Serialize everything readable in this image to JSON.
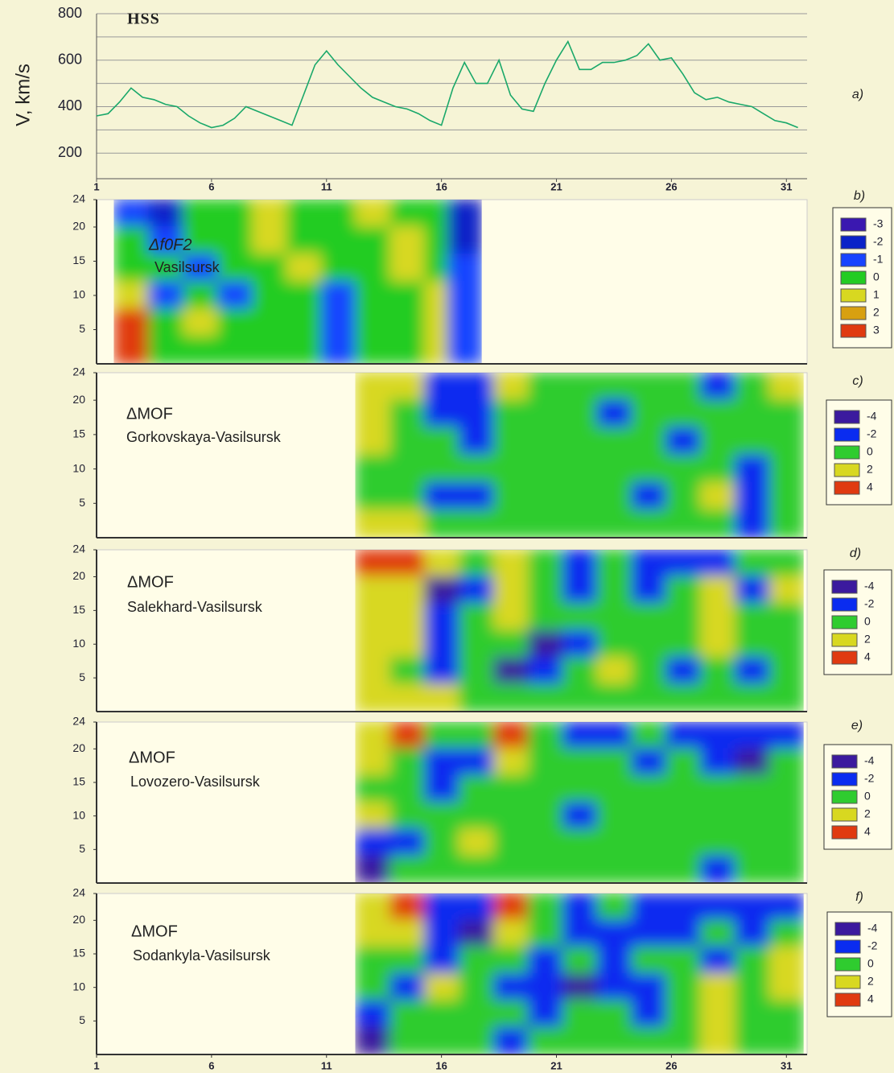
{
  "chart_data": [
    {
      "type": "line",
      "y_label": "V, km/s",
      "annotation": "HSS",
      "panel": "a)",
      "color": "#1aa86a",
      "xlim": [
        1,
        31.9
      ],
      "xticks": [
        1,
        6,
        11,
        16,
        21,
        26,
        31
      ],
      "ylim": [
        90,
        800
      ],
      "yticks": [
        200,
        400,
        600,
        800
      ],
      "minor_yticks": [
        300,
        500,
        700
      ],
      "grid": true,
      "x": [
        1,
        1.5,
        2,
        2.5,
        3,
        3.5,
        4,
        4.5,
        5,
        5.5,
        6,
        6.5,
        7,
        7.5,
        8,
        8.5,
        9,
        9.5,
        10,
        10.5,
        11,
        11.5,
        12,
        12.5,
        13,
        13.5,
        14,
        14.5,
        15,
        15.5,
        16,
        16.5,
        17,
        17.5,
        18,
        18.5,
        19,
        19.5,
        20,
        20.5,
        21,
        21.5,
        22,
        22.5,
        23,
        23.5,
        24,
        24.5,
        25,
        25.5,
        26,
        26.5,
        27,
        27.5,
        28,
        28.5,
        29,
        29.5,
        30,
        30.5,
        31,
        31.5
      ],
      "values": [
        360,
        370,
        420,
        480,
        440,
        430,
        410,
        400,
        360,
        330,
        310,
        320,
        350,
        400,
        380,
        360,
        340,
        320,
        450,
        580,
        640,
        580,
        530,
        480,
        440,
        420,
        400,
        390,
        370,
        340,
        320,
        480,
        590,
        500,
        500,
        600,
        450,
        390,
        380,
        500,
        600,
        680,
        560,
        560,
        590,
        590,
        600,
        620,
        670,
        600,
        610,
        540,
        460,
        430,
        440,
        420,
        410,
        400,
        370,
        340,
        330,
        310
      ]
    },
    {
      "type": "heatmap",
      "title": "Δf0F2",
      "subtitle": "Vasilsursk",
      "panel": "b)",
      "xlim": [
        1,
        31.9
      ],
      "ylim": [
        0,
        24
      ],
      "yticks": [
        5,
        10,
        15,
        20,
        24
      ],
      "x": [
        2.5,
        4,
        5.5,
        7,
        8.5,
        10,
        11.5,
        13,
        14.5,
        16,
        17
      ],
      "y": [
        22,
        18,
        14,
        10,
        6,
        2
      ],
      "z": [
        [
          -1,
          -2,
          0,
          0,
          1,
          0,
          0,
          1,
          0,
          0,
          -2
        ],
        [
          0,
          -1,
          0,
          0,
          1,
          0,
          0,
          0,
          1,
          0,
          -2
        ],
        [
          0,
          0,
          -1,
          0,
          0,
          1,
          0,
          0,
          1,
          0,
          -1
        ],
        [
          1,
          -1,
          0,
          -1,
          0,
          0,
          -1,
          0,
          0,
          1,
          -1
        ],
        [
          3,
          0,
          1,
          0,
          0,
          0,
          -1,
          0,
          0,
          1,
          -1
        ],
        [
          3,
          0,
          0,
          0,
          0,
          0,
          -1,
          0,
          0,
          1,
          -1
        ]
      ],
      "legend": [
        {
          "value": -3,
          "color": "#3a18b0"
        },
        {
          "value": -2,
          "color": "#0a22c8"
        },
        {
          "value": -1,
          "color": "#1844ff"
        },
        {
          "value": 0,
          "color": "#22cc22"
        },
        {
          "value": 1,
          "color": "#d8d820"
        },
        {
          "value": 2,
          "color": "#d8a010"
        },
        {
          "value": 3,
          "color": "#e03a10"
        }
      ]
    },
    {
      "type": "heatmap",
      "title": "ΔMOF",
      "subtitle": "Gorkovskaya-Vasilsursk",
      "panel": "c)",
      "xlim": [
        1,
        31.9
      ],
      "ylim": [
        0,
        24
      ],
      "yticks": [
        5,
        10,
        15,
        20,
        24
      ],
      "x": [
        13,
        14.5,
        16,
        17.5,
        19,
        20.5,
        22,
        23.5,
        25,
        26.5,
        28,
        29.5,
        31
      ],
      "y": [
        22,
        18,
        14,
        10,
        6,
        2
      ],
      "z": [
        [
          2,
          2,
          -2,
          -2,
          2,
          0,
          0,
          0,
          0,
          0,
          -2,
          0,
          2
        ],
        [
          2,
          0,
          -2,
          -2,
          0,
          0,
          0,
          -2,
          0,
          0,
          0,
          0,
          0
        ],
        [
          2,
          0,
          0,
          -2,
          0,
          0,
          0,
          0,
          0,
          -2,
          0,
          0,
          0
        ],
        [
          0,
          0,
          0,
          0,
          0,
          0,
          0,
          0,
          0,
          0,
          0,
          -2,
          0
        ],
        [
          0,
          0,
          -2,
          -2,
          0,
          0,
          0,
          0,
          -2,
          0,
          2,
          -2,
          0
        ],
        [
          2,
          2,
          0,
          0,
          0,
          0,
          0,
          0,
          0,
          0,
          0,
          -2,
          0
        ]
      ],
      "legend": [
        {
          "value": -4,
          "color": "#3b1a9e"
        },
        {
          "value": -2,
          "color": "#0a2cf0"
        },
        {
          "value": 0,
          "color": "#2fcc2f"
        },
        {
          "value": 2,
          "color": "#d8d820"
        },
        {
          "value": 4,
          "color": "#e03a10"
        }
      ]
    },
    {
      "type": "heatmap",
      "title": "ΔMOF",
      "subtitle": "Salekhard-Vasilsursk",
      "panel": "d)",
      "xlim": [
        1,
        31.9
      ],
      "ylim": [
        0,
        24
      ],
      "yticks": [
        5,
        10,
        15,
        20,
        24
      ],
      "x": [
        13,
        14.5,
        16,
        17.5,
        19,
        20.5,
        22,
        23.5,
        25,
        26.5,
        28,
        29.5,
        31
      ],
      "y": [
        22,
        18,
        14,
        10,
        6,
        2
      ],
      "z": [
        [
          4,
          4,
          2,
          0,
          2,
          0,
          -2,
          0,
          -2,
          -2,
          -2,
          0,
          0
        ],
        [
          2,
          2,
          -4,
          -2,
          2,
          0,
          -2,
          0,
          -2,
          0,
          2,
          -2,
          2
        ],
        [
          2,
          2,
          -2,
          0,
          2,
          0,
          0,
          0,
          0,
          0,
          2,
          0,
          0
        ],
        [
          2,
          2,
          -2,
          0,
          0,
          -4,
          -2,
          0,
          0,
          0,
          2,
          0,
          0
        ],
        [
          2,
          0,
          -2,
          0,
          -4,
          -2,
          0,
          2,
          0,
          -2,
          0,
          -2,
          0
        ],
        [
          2,
          2,
          2,
          0,
          0,
          0,
          0,
          0,
          0,
          0,
          0,
          0,
          0
        ]
      ],
      "legend": [
        {
          "value": -4,
          "color": "#3b1a9e"
        },
        {
          "value": -2,
          "color": "#0a2cf0"
        },
        {
          "value": 0,
          "color": "#2fcc2f"
        },
        {
          "value": 2,
          "color": "#d8d820"
        },
        {
          "value": 4,
          "color": "#e03a10"
        }
      ]
    },
    {
      "type": "heatmap",
      "title": "ΔMOF",
      "subtitle": "Lovozero-Vasilsursk",
      "panel": "e)",
      "xlim": [
        1,
        31.9
      ],
      "ylim": [
        0,
        24
      ],
      "yticks": [
        5,
        10,
        15,
        20,
        24
      ],
      "x": [
        13,
        14.5,
        16,
        17.5,
        19,
        20.5,
        22,
        23.5,
        25,
        26.5,
        28,
        29.5,
        31
      ],
      "y": [
        22,
        18,
        14,
        10,
        6,
        2
      ],
      "z": [
        [
          2,
          4,
          0,
          0,
          4,
          0,
          -2,
          -2,
          0,
          -2,
          -2,
          -2,
          -2
        ],
        [
          2,
          0,
          -2,
          -2,
          2,
          0,
          0,
          0,
          -2,
          0,
          -2,
          -4,
          0
        ],
        [
          0,
          0,
          -2,
          0,
          0,
          0,
          0,
          0,
          0,
          0,
          0,
          0,
          0
        ],
        [
          2,
          0,
          0,
          0,
          0,
          0,
          -2,
          0,
          0,
          0,
          0,
          0,
          0
        ],
        [
          -2,
          -2,
          0,
          2,
          0,
          0,
          0,
          0,
          0,
          0,
          0,
          0,
          0
        ],
        [
          -4,
          0,
          0,
          0,
          0,
          0,
          0,
          0,
          0,
          0,
          -2,
          0,
          0
        ]
      ],
      "legend": [
        {
          "value": -4,
          "color": "#3b1a9e"
        },
        {
          "value": -2,
          "color": "#0a2cf0"
        },
        {
          "value": 0,
          "color": "#2fcc2f"
        },
        {
          "value": 2,
          "color": "#d8d820"
        },
        {
          "value": 4,
          "color": "#e03a10"
        }
      ]
    },
    {
      "type": "heatmap",
      "title": "ΔMOF",
      "subtitle": "Sodankyla-Vasilsursk",
      "panel": "f)",
      "xlim": [
        1,
        31.9
      ],
      "xticks": [
        1,
        6,
        11,
        16,
        21,
        26,
        31
      ],
      "ylim": [
        0,
        24
      ],
      "yticks": [
        5,
        10,
        15,
        20,
        24
      ],
      "x": [
        13,
        14.5,
        16,
        17.5,
        19,
        20.5,
        22,
        23.5,
        25,
        26.5,
        28,
        29.5,
        31
      ],
      "y": [
        22,
        18,
        14,
        10,
        6,
        2
      ],
      "z": [
        [
          2,
          4,
          -2,
          -2,
          4,
          0,
          -2,
          0,
          -2,
          -2,
          -2,
          -2,
          -2
        ],
        [
          2,
          2,
          -2,
          -4,
          2,
          0,
          -2,
          -2,
          -2,
          -2,
          0,
          -2,
          0
        ],
        [
          0,
          0,
          -2,
          0,
          0,
          -2,
          0,
          -2,
          0,
          0,
          -2,
          0,
          2
        ],
        [
          0,
          -2,
          2,
          0,
          -2,
          -2,
          -4,
          -2,
          -2,
          0,
          2,
          0,
          2
        ],
        [
          -2,
          0,
          0,
          0,
          0,
          -2,
          0,
          0,
          -2,
          0,
          2,
          0,
          0
        ],
        [
          -4,
          0,
          0,
          0,
          -2,
          0,
          0,
          0,
          0,
          0,
          2,
          0,
          0
        ]
      ],
      "legend": [
        {
          "value": -4,
          "color": "#3b1a9e"
        },
        {
          "value": -2,
          "color": "#0a2cf0"
        },
        {
          "value": 0,
          "color": "#2fcc2f"
        },
        {
          "value": 2,
          "color": "#d8d820"
        },
        {
          "value": 4,
          "color": "#e03a10"
        }
      ]
    }
  ]
}
